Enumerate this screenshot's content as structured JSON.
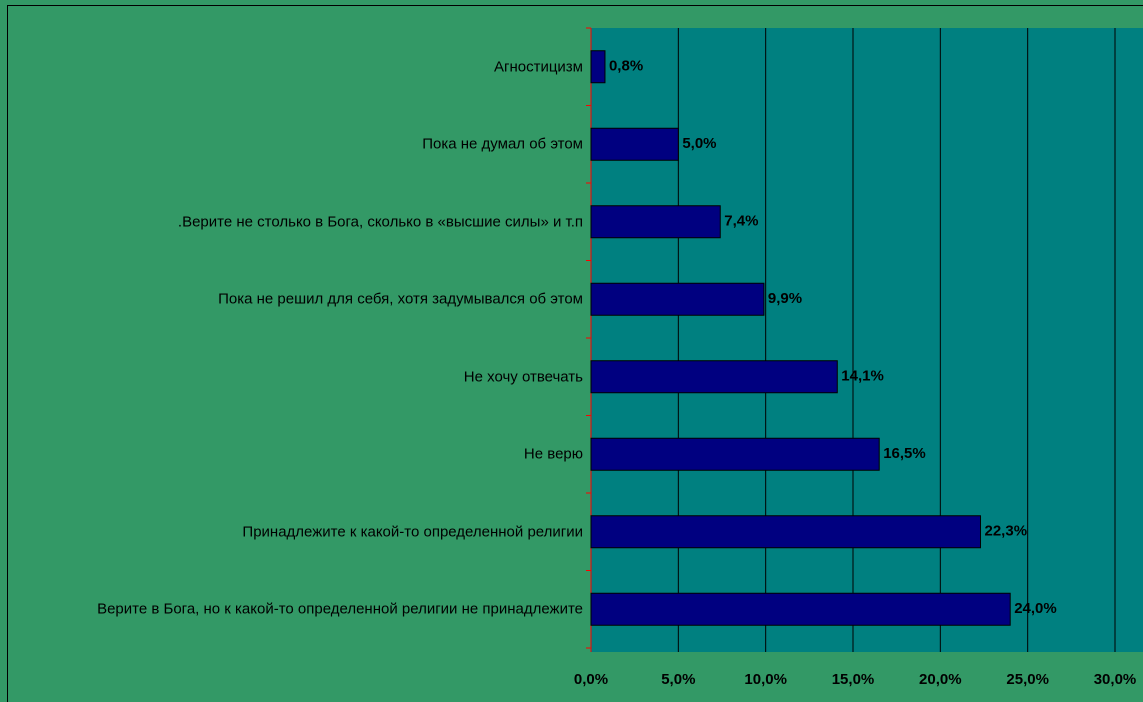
{
  "chart_data": {
    "type": "bar",
    "orientation": "horizontal",
    "categories": [
      "Агностицизм",
      "Пока не думал об этом",
      ".Верите не столько в Бога, сколько в «высшие силы» и т.п",
      "Пока не решил для себя, хотя задумывался об этом",
      "Не хочу отвечать",
      "Не верю",
      "Принадлежите к какой-то определенной религии",
      "Верите в Бога, но к какой-то определенной религии не принадлежите"
    ],
    "values": [
      0.8,
      5.0,
      7.4,
      9.9,
      14.1,
      16.5,
      22.3,
      24.0
    ],
    "value_labels": [
      "0,8%",
      "5,0%",
      "7,4%",
      "9,9%",
      "14,1%",
      "16,5%",
      "22,3%",
      "24,0%"
    ],
    "color": "#000080",
    "xlim": [
      0,
      30
    ],
    "xticks": [
      {
        "value": 0,
        "label": "0,0%"
      },
      {
        "value": 5,
        "label": "5,0%"
      },
      {
        "value": 10,
        "label": "10,0%"
      },
      {
        "value": 15,
        "label": "15,0%"
      },
      {
        "value": 20,
        "label": "20,0%"
      },
      {
        "value": 25,
        "label": "25,0%"
      },
      {
        "value": 30,
        "label": "30,0%"
      }
    ],
    "grid": true
  }
}
